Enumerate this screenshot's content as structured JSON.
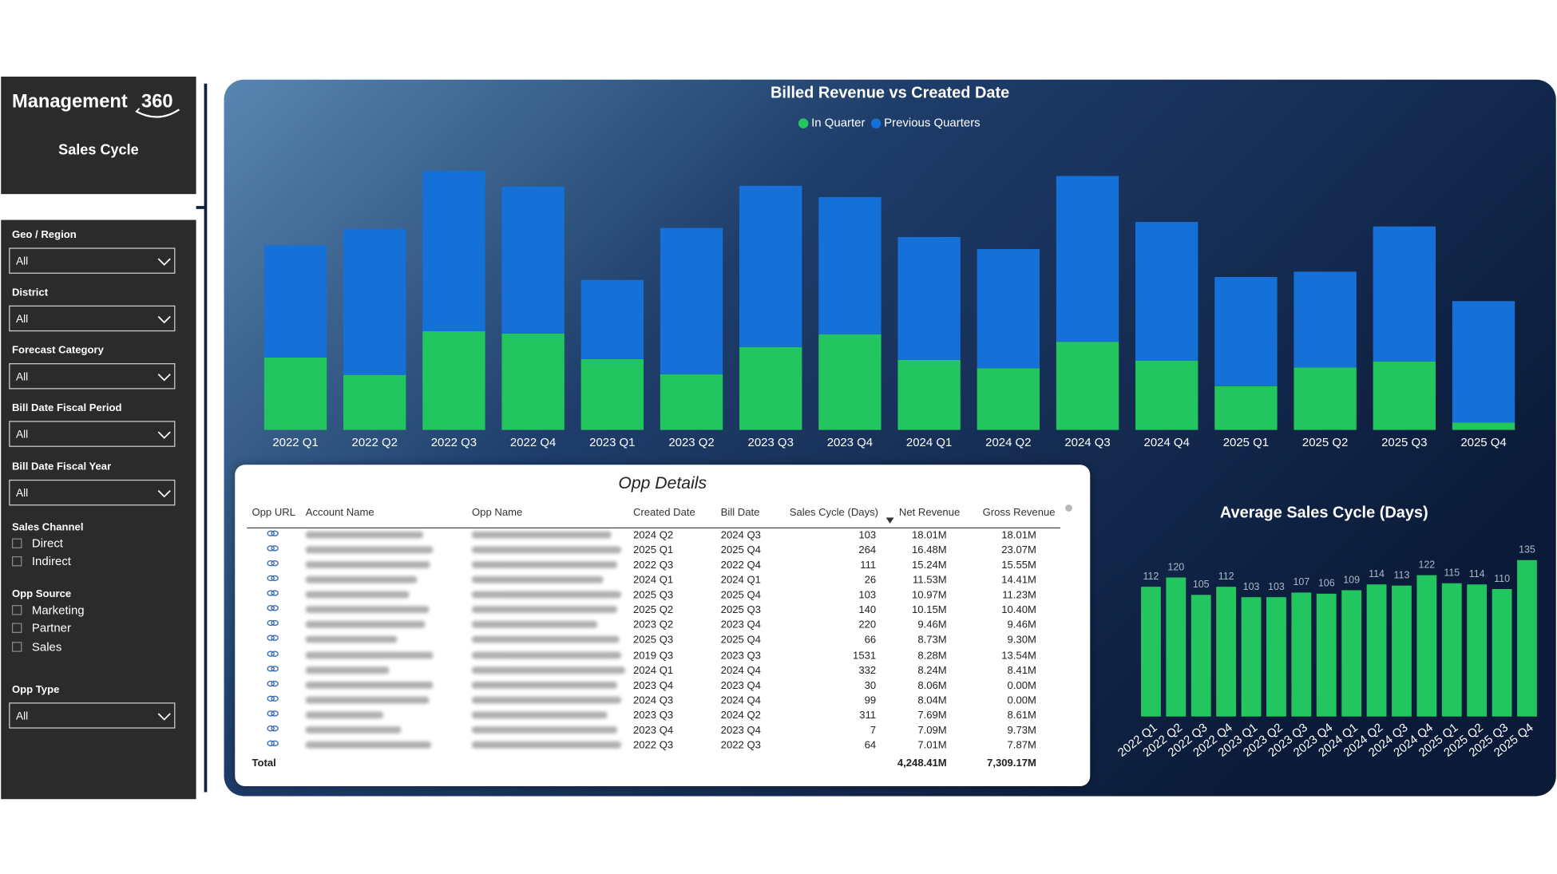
{
  "sidebar": {
    "title": "Management",
    "logo_number": "360",
    "subtitle": "Sales Cycle",
    "dropdowns": [
      {
        "label": "Geo / Region",
        "value": "All"
      },
      {
        "label": "District",
        "value": "All"
      },
      {
        "label": "Forecast Category",
        "value": "All"
      },
      {
        "label": "Bill Date Fiscal Period",
        "value": "All"
      },
      {
        "label": "Bill Date Fiscal Year",
        "value": "All"
      }
    ],
    "sales_channel": {
      "label": "Sales Channel",
      "options": [
        "Direct",
        "Indirect"
      ]
    },
    "opp_source": {
      "label": "Opp Source",
      "options": [
        "Marketing",
        "Partner",
        "Sales"
      ]
    },
    "opp_type": {
      "label": "Opp Type",
      "value": "All"
    }
  },
  "chart_data": [
    {
      "type": "stacked_bar",
      "title": "Billed Revenue vs Created Date",
      "categories": [
        "2022 Q1",
        "2022 Q2",
        "2022 Q3",
        "2022 Q4",
        "2023 Q1",
        "2023 Q2",
        "2023 Q3",
        "2023 Q4",
        "2024 Q1",
        "2024 Q2",
        "2024 Q3",
        "2024 Q4",
        "2025 Q1",
        "2025 Q2",
        "2025 Q3",
        "2025 Q4"
      ],
      "series": [
        {
          "name": "In Quarter",
          "color": "#22c55e",
          "values": [
            96,
            73,
            131,
            128,
            94,
            74,
            110,
            127,
            93,
            82,
            117,
            92,
            58,
            83,
            91,
            10
          ]
        },
        {
          "name": "Previous Quarters",
          "color": "#1570d8",
          "values": [
            149,
            194,
            213,
            195,
            105,
            194,
            214,
            182,
            163,
            158,
            220,
            184,
            145,
            127,
            179,
            161
          ]
        }
      ],
      "ylim": [
        0,
        350
      ],
      "legend": "top"
    },
    {
      "type": "bar",
      "title": "Average Sales Cycle (Days)",
      "categories": [
        "2022 Q1",
        "2022 Q2",
        "2022 Q3",
        "2022 Q4",
        "2023 Q1",
        "2023 Q2",
        "2023 Q3",
        "2023 Q4",
        "2024 Q1",
        "2024 Q2",
        "2024 Q3",
        "2024 Q4",
        "2025 Q1",
        "2025 Q2",
        "2025 Q3",
        "2025 Q4"
      ],
      "values": [
        112,
        120,
        105,
        112,
        103,
        103,
        107,
        106,
        109,
        114,
        113,
        122,
        115,
        114,
        110,
        135
      ],
      "color": "#22c55e",
      "ylim": [
        0,
        140
      ]
    }
  ],
  "table": {
    "title": "Opp Details",
    "columns": [
      "Opp URL",
      "Account Name",
      "Opp Name",
      "Created Date",
      "Bill Date",
      "Sales Cycle (Days)",
      "Net Revenue",
      "Gross Revenue"
    ],
    "rows": [
      [
        "2024 Q2",
        "2024 Q3",
        "103",
        "18.01M",
        "18.01M"
      ],
      [
        "2025 Q1",
        "2025 Q4",
        "264",
        "16.48M",
        "23.07M"
      ],
      [
        "2022 Q3",
        "2022 Q4",
        "111",
        "15.24M",
        "15.55M"
      ],
      [
        "2024 Q1",
        "2024 Q1",
        "26",
        "11.53M",
        "14.41M"
      ],
      [
        "2025 Q3",
        "2025 Q4",
        "103",
        "10.97M",
        "11.23M"
      ],
      [
        "2025 Q2",
        "2025 Q3",
        "140",
        "10.15M",
        "10.40M"
      ],
      [
        "2023 Q2",
        "2023 Q4",
        "220",
        "9.46M",
        "9.46M"
      ],
      [
        "2025 Q3",
        "2025 Q4",
        "66",
        "8.73M",
        "9.30M"
      ],
      [
        "2019 Q3",
        "2023 Q3",
        "1531",
        "8.28M",
        "13.54M"
      ],
      [
        "2024 Q1",
        "2024 Q4",
        "332",
        "8.24M",
        "8.41M"
      ],
      [
        "2023 Q4",
        "2023 Q4",
        "30",
        "8.06M",
        "0.00M"
      ],
      [
        "2024 Q3",
        "2024 Q4",
        "99",
        "8.04M",
        "0.00M"
      ],
      [
        "2023 Q3",
        "2024 Q2",
        "311",
        "7.69M",
        "8.61M"
      ],
      [
        "2023 Q4",
        "2023 Q4",
        "7",
        "7.09M",
        "9.73M"
      ],
      [
        "2022 Q3",
        "2022 Q3",
        "64",
        "7.01M",
        "7.87M"
      ]
    ],
    "total": {
      "label": "Total",
      "net": "4,248.41M",
      "gross": "7,309.17M"
    }
  }
}
